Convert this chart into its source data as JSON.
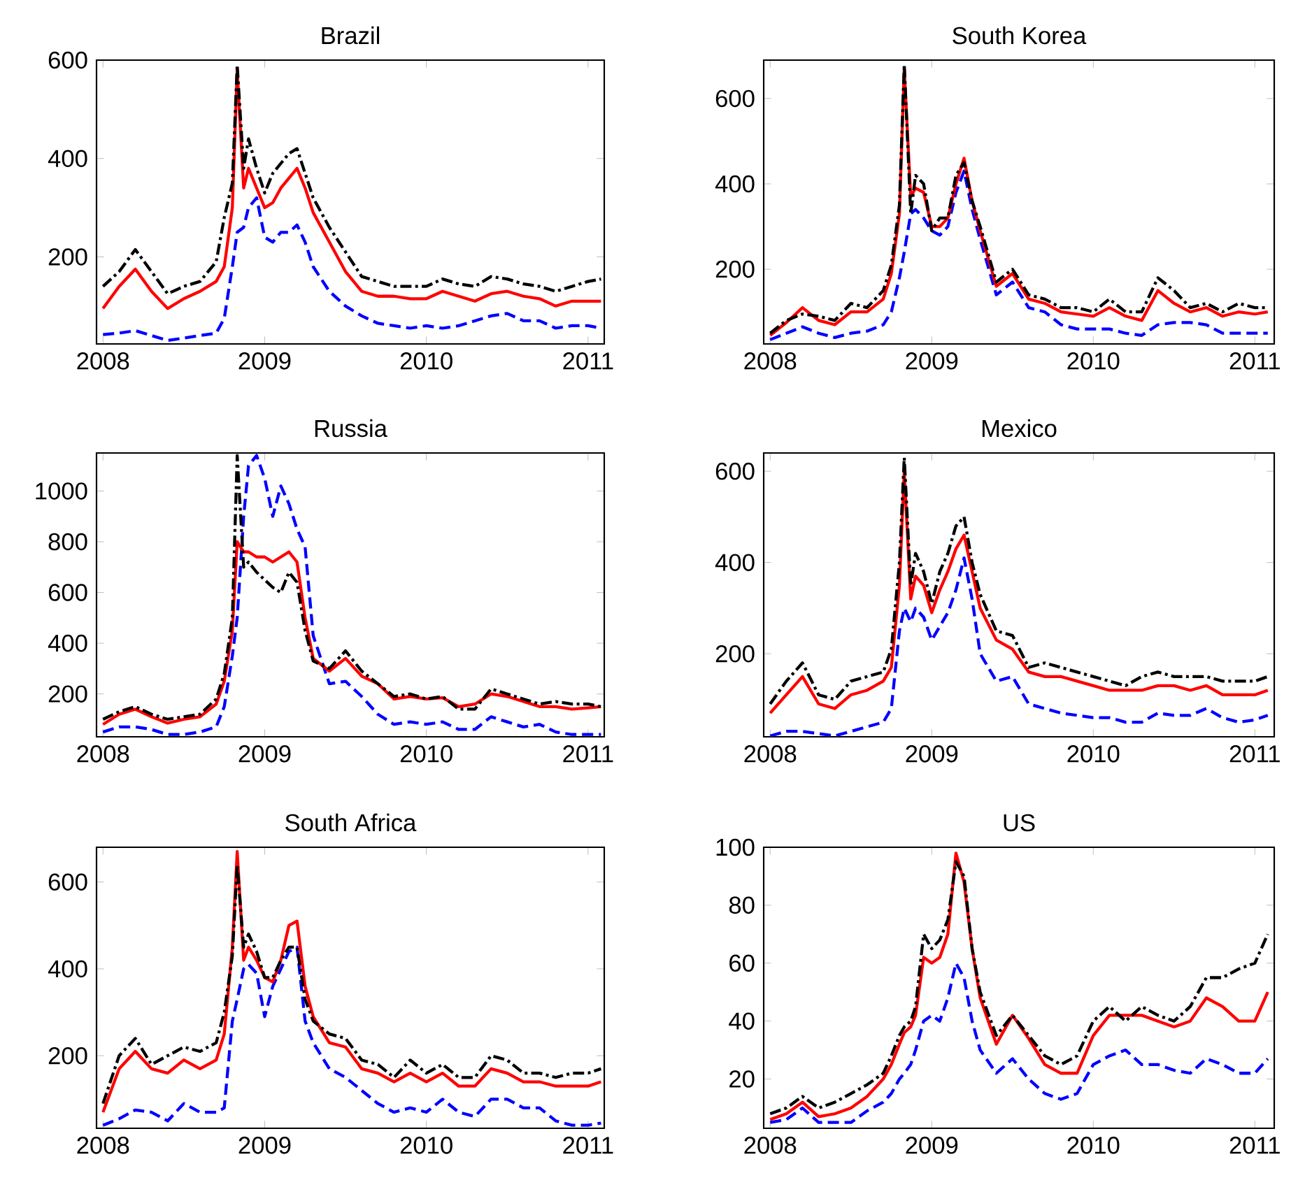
{
  "chart_data": [
    {
      "type": "line",
      "title": "Brazil",
      "xlim": [
        2007.96,
        2011.1
      ],
      "ylim": [
        23,
        600
      ],
      "xticks": [
        2008,
        2009,
        2010,
        2011
      ],
      "yticks": [
        200,
        400,
        600
      ],
      "x": [
        2008.0,
        2008.1,
        2008.2,
        2008.3,
        2008.4,
        2008.5,
        2008.6,
        2008.7,
        2008.75,
        2008.8,
        2008.83,
        2008.87,
        2008.9,
        2008.95,
        2009.0,
        2009.05,
        2009.1,
        2009.15,
        2009.2,
        2009.25,
        2009.3,
        2009.4,
        2009.5,
        2009.6,
        2009.7,
        2009.8,
        2009.9,
        2010.0,
        2010.1,
        2010.2,
        2010.3,
        2010.4,
        2010.5,
        2010.6,
        2010.7,
        2010.8,
        2010.9,
        2011.0,
        2011.08
      ],
      "series": [
        {
          "color": "#0000ff",
          "line_style": "dashed",
          "values": [
            42,
            45,
            50,
            40,
            30,
            35,
            40,
            45,
            75,
            180,
            250,
            260,
            300,
            320,
            240,
            230,
            250,
            250,
            265,
            230,
            180,
            130,
            100,
            80,
            65,
            60,
            55,
            60,
            55,
            60,
            70,
            80,
            85,
            70,
            70,
            55,
            60,
            60,
            55
          ]
        },
        {
          "color": "#ff0000",
          "line_style": "solid",
          "values": [
            95,
            140,
            175,
            130,
            95,
            115,
            130,
            150,
            180,
            300,
            580,
            340,
            380,
            340,
            300,
            310,
            340,
            360,
            380,
            340,
            290,
            230,
            170,
            130,
            120,
            120,
            115,
            115,
            130,
            120,
            110,
            125,
            130,
            120,
            115,
            100,
            110,
            110,
            110
          ]
        },
        {
          "color": "#000000",
          "line_style": "dashdot",
          "values": [
            140,
            170,
            215,
            170,
            125,
            140,
            150,
            190,
            280,
            350,
            590,
            380,
            440,
            380,
            330,
            370,
            390,
            410,
            420,
            370,
            320,
            260,
            210,
            160,
            150,
            140,
            140,
            140,
            155,
            145,
            140,
            160,
            155,
            145,
            140,
            130,
            140,
            150,
            155
          ]
        }
      ]
    },
    {
      "type": "line",
      "title": "South Korea",
      "xlim": [
        2007.96,
        2011.12
      ],
      "ylim": [
        25,
        690
      ],
      "xticks": [
        2008,
        2009,
        2010,
        2011
      ],
      "yticks": [
        200,
        400,
        600
      ],
      "x": [
        2008.0,
        2008.1,
        2008.2,
        2008.3,
        2008.4,
        2008.5,
        2008.6,
        2008.7,
        2008.75,
        2008.8,
        2008.83,
        2008.87,
        2008.9,
        2008.95,
        2009.0,
        2009.05,
        2009.1,
        2009.15,
        2009.2,
        2009.25,
        2009.3,
        2009.4,
        2009.5,
        2009.6,
        2009.7,
        2009.8,
        2009.9,
        2010.0,
        2010.1,
        2010.2,
        2010.3,
        2010.4,
        2010.5,
        2010.6,
        2010.7,
        2010.8,
        2010.9,
        2011.0,
        2011.08
      ],
      "series": [
        {
          "color": "#0000ff",
          "line_style": "dashed",
          "values": [
            35,
            50,
            65,
            50,
            40,
            50,
            55,
            70,
            100,
            180,
            240,
            330,
            340,
            320,
            290,
            280,
            300,
            380,
            430,
            340,
            270,
            140,
            170,
            110,
            100,
            70,
            60,
            60,
            60,
            50,
            45,
            70,
            75,
            75,
            70,
            50,
            50,
            50,
            50
          ]
        },
        {
          "color": "#ff0000",
          "line_style": "solid",
          "values": [
            45,
            75,
            110,
            80,
            70,
            100,
            100,
            130,
            190,
            330,
            670,
            370,
            390,
            380,
            300,
            300,
            320,
            400,
            460,
            360,
            290,
            160,
            190,
            130,
            120,
            100,
            95,
            90,
            110,
            90,
            80,
            150,
            120,
            100,
            110,
            90,
            100,
            95,
            100
          ]
        },
        {
          "color": "#000000",
          "line_style": "dashdot",
          "values": [
            50,
            80,
            95,
            90,
            80,
            120,
            110,
            150,
            210,
            350,
            680,
            330,
            420,
            400,
            290,
            320,
            320,
            420,
            450,
            360,
            300,
            170,
            200,
            140,
            130,
            110,
            110,
            100,
            130,
            100,
            100,
            180,
            150,
            110,
            120,
            100,
            120,
            110,
            110
          ]
        }
      ]
    },
    {
      "type": "line",
      "title": "Russia",
      "xlim": [
        2007.96,
        2011.1
      ],
      "ylim": [
        31,
        1150
      ],
      "xticks": [
        2008,
        2009,
        2010,
        2011
      ],
      "yticks": [
        200,
        400,
        600,
        800,
        1000
      ],
      "x": [
        2008.0,
        2008.1,
        2008.2,
        2008.3,
        2008.4,
        2008.5,
        2008.6,
        2008.7,
        2008.75,
        2008.8,
        2008.83,
        2008.87,
        2008.9,
        2008.95,
        2009.0,
        2009.05,
        2009.1,
        2009.15,
        2009.2,
        2009.25,
        2009.3,
        2009.4,
        2009.5,
        2009.6,
        2009.7,
        2009.8,
        2009.9,
        2010.0,
        2010.1,
        2010.2,
        2010.3,
        2010.4,
        2010.5,
        2010.6,
        2010.7,
        2010.8,
        2010.9,
        2011.0,
        2011.08
      ],
      "series": [
        {
          "color": "#0000ff",
          "line_style": "dashed",
          "values": [
            50,
            70,
            70,
            60,
            40,
            40,
            50,
            70,
            150,
            350,
            500,
            900,
            1100,
            1140,
            1050,
            900,
            1020,
            950,
            850,
            780,
            430,
            240,
            250,
            190,
            120,
            80,
            90,
            80,
            90,
            60,
            60,
            110,
            90,
            70,
            80,
            50,
            40,
            40,
            40
          ]
        },
        {
          "color": "#ff0000",
          "line_style": "solid",
          "values": [
            80,
            120,
            140,
            110,
            85,
            100,
            110,
            160,
            250,
            450,
            800,
            760,
            760,
            740,
            740,
            720,
            740,
            760,
            720,
            500,
            340,
            290,
            340,
            270,
            240,
            180,
            190,
            180,
            185,
            150,
            160,
            200,
            190,
            170,
            150,
            150,
            140,
            145,
            150
          ]
        },
        {
          "color": "#000000",
          "line_style": "dashdot",
          "values": [
            100,
            130,
            150,
            120,
            100,
            110,
            120,
            180,
            280,
            500,
            1140,
            700,
            720,
            680,
            650,
            620,
            600,
            680,
            640,
            450,
            330,
            300,
            370,
            290,
            240,
            190,
            200,
            180,
            190,
            140,
            140,
            220,
            200,
            180,
            160,
            170,
            160,
            160,
            150
          ]
        }
      ]
    },
    {
      "type": "line",
      "title": "Mexico",
      "xlim": [
        2007.96,
        2011.12
      ],
      "ylim": [
        18,
        640
      ],
      "xticks": [
        2008,
        2009,
        2010,
        2011
      ],
      "yticks": [
        200,
        400,
        600
      ],
      "x": [
        2008.0,
        2008.1,
        2008.2,
        2008.3,
        2008.4,
        2008.5,
        2008.6,
        2008.7,
        2008.75,
        2008.8,
        2008.83,
        2008.87,
        2008.9,
        2008.95,
        2009.0,
        2009.05,
        2009.1,
        2009.15,
        2009.2,
        2009.25,
        2009.3,
        2009.4,
        2009.5,
        2009.6,
        2009.7,
        2009.8,
        2009.9,
        2010.0,
        2010.1,
        2010.2,
        2010.3,
        2010.4,
        2010.5,
        2010.6,
        2010.7,
        2010.8,
        2010.9,
        2011.0,
        2011.08
      ],
      "series": [
        {
          "color": "#0000ff",
          "line_style": "dashed",
          "values": [
            20,
            30,
            30,
            25,
            20,
            30,
            40,
            50,
            80,
            250,
            300,
            270,
            300,
            280,
            230,
            260,
            290,
            340,
            410,
            320,
            200,
            140,
            150,
            90,
            80,
            70,
            65,
            60,
            60,
            50,
            50,
            70,
            65,
            65,
            80,
            60,
            50,
            55,
            65
          ]
        },
        {
          "color": "#ff0000",
          "line_style": "solid",
          "values": [
            70,
            110,
            150,
            90,
            80,
            110,
            120,
            140,
            170,
            350,
            600,
            320,
            370,
            350,
            290,
            340,
            380,
            430,
            460,
            380,
            300,
            230,
            210,
            160,
            150,
            150,
            140,
            130,
            120,
            120,
            120,
            130,
            130,
            120,
            130,
            110,
            110,
            110,
            120
          ]
        },
        {
          "color": "#000000",
          "line_style": "dashdot",
          "values": [
            90,
            140,
            180,
            110,
            100,
            140,
            150,
            160,
            210,
            400,
            630,
            350,
            420,
            380,
            310,
            380,
            420,
            480,
            500,
            400,
            330,
            250,
            240,
            170,
            180,
            170,
            160,
            150,
            140,
            130,
            150,
            160,
            150,
            150,
            150,
            140,
            140,
            140,
            150
          ]
        }
      ]
    },
    {
      "type": "line",
      "title": "South Africa",
      "xlim": [
        2007.96,
        2011.1
      ],
      "ylim": [
        33,
        680
      ],
      "xticks": [
        2008,
        2009,
        2010,
        2011
      ],
      "yticks": [
        200,
        400,
        600
      ],
      "x": [
        2008.0,
        2008.1,
        2008.2,
        2008.3,
        2008.4,
        2008.5,
        2008.6,
        2008.7,
        2008.75,
        2008.8,
        2008.83,
        2008.87,
        2008.9,
        2008.95,
        2009.0,
        2009.05,
        2009.1,
        2009.15,
        2009.2,
        2009.25,
        2009.3,
        2009.4,
        2009.5,
        2009.6,
        2009.7,
        2009.8,
        2009.9,
        2010.0,
        2010.1,
        2010.2,
        2010.3,
        2010.4,
        2010.5,
        2010.6,
        2010.7,
        2010.8,
        2010.9,
        2011.0,
        2011.08
      ],
      "series": [
        {
          "color": "#0000ff",
          "line_style": "dashed",
          "values": [
            40,
            55,
            75,
            70,
            50,
            90,
            70,
            70,
            80,
            280,
            330,
            400,
            410,
            390,
            290,
            360,
            400,
            440,
            450,
            280,
            230,
            170,
            150,
            120,
            90,
            70,
            80,
            70,
            100,
            70,
            60,
            100,
            100,
            80,
            80,
            50,
            40,
            40,
            45
          ]
        },
        {
          "color": "#ff0000",
          "line_style": "solid",
          "values": [
            70,
            170,
            210,
            170,
            160,
            190,
            170,
            190,
            250,
            450,
            670,
            420,
            450,
            420,
            380,
            370,
            420,
            500,
            510,
            360,
            290,
            230,
            220,
            170,
            160,
            140,
            160,
            140,
            160,
            130,
            130,
            170,
            160,
            140,
            140,
            130,
            130,
            130,
            140
          ]
        },
        {
          "color": "#000000",
          "line_style": "dashdot",
          "values": [
            90,
            200,
            240,
            180,
            200,
            220,
            210,
            230,
            300,
            430,
            640,
            450,
            480,
            440,
            380,
            380,
            420,
            450,
            450,
            330,
            280,
            250,
            240,
            190,
            180,
            150,
            190,
            160,
            180,
            150,
            150,
            200,
            190,
            160,
            160,
            150,
            160,
            160,
            170
          ]
        }
      ]
    },
    {
      "type": "line",
      "title": "US",
      "xlim": [
        2007.96,
        2011.12
      ],
      "ylim": [
        3,
        100
      ],
      "xticks": [
        2008,
        2009,
        2010,
        2011
      ],
      "yticks": [
        20,
        40,
        60,
        80,
        100
      ],
      "x": [
        2008.0,
        2008.1,
        2008.2,
        2008.3,
        2008.4,
        2008.5,
        2008.6,
        2008.7,
        2008.75,
        2008.8,
        2008.83,
        2008.87,
        2008.9,
        2008.95,
        2009.0,
        2009.05,
        2009.1,
        2009.15,
        2009.2,
        2009.25,
        2009.3,
        2009.4,
        2009.5,
        2009.6,
        2009.7,
        2009.8,
        2009.9,
        2010.0,
        2010.1,
        2010.2,
        2010.3,
        2010.4,
        2010.5,
        2010.6,
        2010.7,
        2010.8,
        2010.9,
        2011.0,
        2011.08
      ],
      "series": [
        {
          "color": "#0000ff",
          "line_style": "dashed",
          "values": [
            5,
            6,
            10,
            5,
            5,
            5,
            9,
            12,
            15,
            20,
            22,
            25,
            30,
            40,
            42,
            40,
            48,
            60,
            55,
            40,
            30,
            22,
            27,
            20,
            15,
            13,
            15,
            25,
            28,
            30,
            25,
            25,
            23,
            22,
            27,
            25,
            22,
            22,
            27
          ]
        },
        {
          "color": "#ff0000",
          "line_style": "solid",
          "values": [
            6,
            8,
            12,
            7,
            8,
            10,
            14,
            20,
            25,
            32,
            36,
            38,
            42,
            62,
            60,
            62,
            70,
            98,
            88,
            65,
            48,
            32,
            42,
            34,
            25,
            22,
            22,
            35,
            42,
            42,
            42,
            40,
            38,
            40,
            48,
            45,
            40,
            40,
            50
          ]
        },
        {
          "color": "#000000",
          "line_style": "dashdot",
          "values": [
            8,
            10,
            14,
            10,
            12,
            15,
            18,
            22,
            28,
            35,
            38,
            40,
            45,
            70,
            65,
            68,
            75,
            95,
            90,
            65,
            50,
            35,
            42,
            35,
            28,
            25,
            28,
            40,
            45,
            40,
            45,
            42,
            40,
            45,
            55,
            55,
            58,
            60,
            70
          ]
        }
      ]
    }
  ]
}
